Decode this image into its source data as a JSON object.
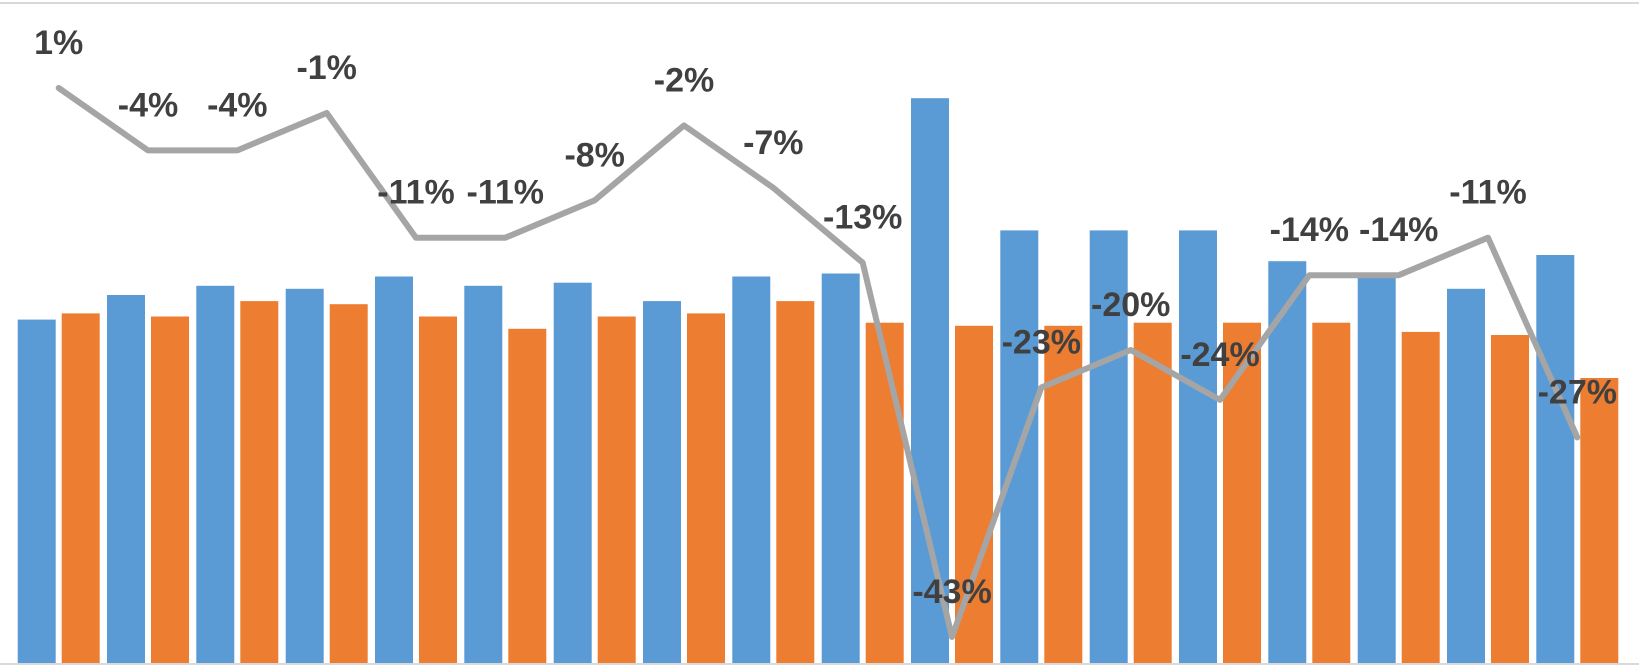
{
  "chart_data": {
    "type": "bar",
    "title": "",
    "xlabel": "",
    "ylabel": "",
    "grid": false,
    "legend": "none",
    "bar_ylim": [
      0,
      100
    ],
    "line_ylim": [
      -45,
      2
    ],
    "series": [
      {
        "kind": "bar",
        "color": "#5B9BD5",
        "values": [
          56,
          60,
          61.5,
          61,
          63,
          61.5,
          62,
          59,
          63,
          63.5,
          92,
          70.5,
          70.5,
          70.5,
          65.5,
          63,
          61,
          66.5
        ]
      },
      {
        "kind": "bar",
        "color": "#ED7D31",
        "values": [
          57,
          56.5,
          59,
          58.5,
          56.5,
          54.5,
          56.5,
          57,
          59,
          55.5,
          55,
          55,
          55.5,
          55.5,
          55.5,
          54,
          53.5,
          46.5
        ]
      },
      {
        "kind": "line",
        "color": "#A5A5A5",
        "values": [
          1,
          -4,
          -4,
          -1,
          -11,
          -11,
          -8,
          -2,
          -7,
          -13,
          -43,
          -23,
          -20,
          -24,
          -14,
          -14,
          -11,
          -27
        ],
        "data_labels": [
          "1%",
          "-4%",
          "-4%",
          "-1%",
          "-11%",
          "-11%",
          "-8%",
          "-2%",
          "-7%",
          "-13%",
          "-43%",
          "-23%",
          "-20%",
          "-24%",
          "-14%",
          "-14%",
          "-11%",
          "-27%"
        ]
      }
    ]
  }
}
